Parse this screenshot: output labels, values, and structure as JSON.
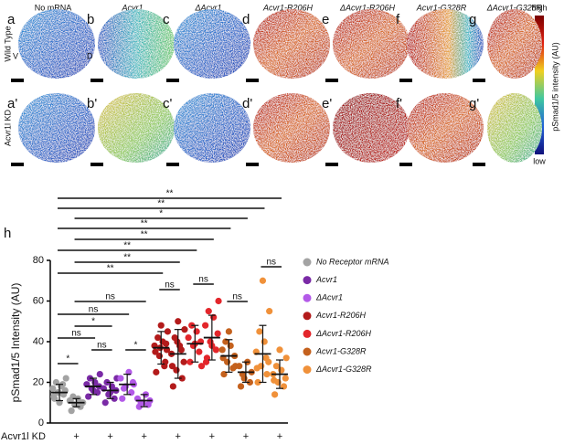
{
  "panels": {
    "columns": [
      "No mRNA",
      "Acvr1",
      "ΔAcvr1",
      "Acvr1-R206H",
      "ΔAcvr1-R206H",
      "Acvr1-G328R",
      "ΔAcvr1-G328R"
    ],
    "row_labels": [
      "Wild Type",
      "Acvr1l KD"
    ],
    "letters": [
      [
        "a",
        "b",
        "c",
        "d",
        "e",
        "f",
        "g"
      ],
      [
        "a'",
        "b'",
        "c'",
        "d'",
        "e'",
        "f'",
        "g'"
      ]
    ],
    "orientation": [
      "V",
      "D"
    ],
    "colorbar": {
      "high": "high",
      "low": "low",
      "title": "pSmad1/5 intensity (AU)"
    }
  },
  "chart_data": {
    "type": "strip",
    "panel_label": "h",
    "y_label": "pSmad1/5 Intensity (AU)",
    "x_label": "Acvr1l KD",
    "categories": [
      null,
      "+",
      null,
      "+",
      null,
      "+",
      null,
      "+",
      null,
      "+",
      null,
      "+",
      null,
      "+"
    ],
    "ylim": [
      0,
      80
    ],
    "yticks": [
      0,
      20,
      40,
      60,
      80
    ],
    "series": [
      {
        "name": "No Receptor mRNA",
        "color": "#a3a3a3",
        "values": [
          15,
          10
        ],
        "sd": [
          4,
          2
        ],
        "points": [
          [
            12,
            14,
            15,
            16,
            17,
            18,
            20,
            22,
            10,
            13,
            19,
            15
          ],
          [
            6,
            8,
            9,
            10,
            11,
            12,
            13,
            10,
            9,
            11
          ]
        ]
      },
      {
        "name": "Acvr1",
        "color": "#7a2aa6",
        "values": [
          18,
          16
        ],
        "sd": [
          4,
          4
        ],
        "points": [
          [
            13,
            15,
            17,
            18,
            19,
            20,
            22,
            24,
            16
          ],
          [
            10,
            12,
            14,
            16,
            17,
            18,
            20,
            22,
            15
          ]
        ]
      },
      {
        "name": "ΔAcvr1",
        "color": "#b35ae8",
        "values": [
          19,
          11
        ],
        "sd": [
          5,
          3
        ],
        "points": [
          [
            12,
            15,
            18,
            20,
            22,
            25,
            17,
            19
          ],
          [
            8,
            9,
            10,
            11,
            12,
            14,
            10
          ]
        ]
      },
      {
        "name": "Acvr1-R206H",
        "color": "#b31b1b",
        "values": [
          37,
          34
        ],
        "sd": [
          8,
          12
        ],
        "points": [
          [
            25,
            30,
            33,
            36,
            38,
            40,
            42,
            45,
            48,
            35,
            28,
            37,
            39
          ],
          [
            18,
            22,
            26,
            30,
            34,
            38,
            42,
            46,
            50,
            28,
            36,
            40
          ]
        ]
      },
      {
        "name": "ΔAcvr1-R206H",
        "color": "#e3262b",
        "values": [
          39,
          42
        ],
        "sd": [
          9,
          11
        ],
        "points": [
          [
            30,
            35,
            38,
            40,
            42,
            45,
            48,
            28,
            39
          ],
          [
            32,
            36,
            40,
            44,
            48,
            52,
            55,
            60,
            38,
            30
          ]
        ]
      },
      {
        "name": "Acvr1-G328R",
        "color": "#c4611d",
        "values": [
          33,
          25
        ],
        "sd": [
          8,
          5
        ],
        "points": [
          [
            24,
            27,
            30,
            33,
            36,
            38,
            40,
            28,
            45,
            32
          ],
          [
            18,
            20,
            22,
            25,
            28,
            30,
            24
          ]
        ]
      },
      {
        "name": "ΔAcvr1-G328R",
        "color": "#f0913a",
        "values": [
          34,
          24
        ],
        "sd": [
          14,
          7
        ],
        "points": [
          [
            20,
            24,
            28,
            30,
            35,
            40,
            45,
            55,
            70,
            27,
            32
          ],
          [
            14,
            18,
            20,
            22,
            24,
            26,
            28,
            32,
            36,
            21
          ]
        ]
      }
    ],
    "comparisons": [
      {
        "label": "**",
        "groups": [
          0,
          13
        ]
      },
      {
        "label": "**",
        "groups": [
          0,
          12
        ]
      },
      {
        "label": "*",
        "groups": [
          1,
          11
        ]
      },
      {
        "label": "**",
        "groups": [
          0,
          10
        ]
      },
      {
        "label": "**",
        "groups": [
          1,
          9
        ]
      },
      {
        "label": "**",
        "groups": [
          0,
          8
        ]
      },
      {
        "label": "**",
        "groups": [
          1,
          7
        ]
      },
      {
        "label": "**",
        "groups": [
          0,
          6
        ]
      },
      {
        "label": "ns",
        "groups": [
          12,
          13
        ]
      },
      {
        "label": "ns",
        "groups": [
          6,
          7
        ]
      },
      {
        "label": "ns",
        "groups": [
          8,
          9
        ]
      },
      {
        "label": "ns",
        "groups": [
          10,
          11
        ]
      },
      {
        "label": "ns",
        "groups": [
          1,
          5
        ]
      },
      {
        "label": "ns",
        "groups": [
          0,
          4
        ]
      },
      {
        "label": "*",
        "groups": [
          1,
          3
        ]
      },
      {
        "label": "ns",
        "groups": [
          0,
          2
        ]
      },
      {
        "label": "ns",
        "groups": [
          2,
          3
        ]
      },
      {
        "label": "*",
        "groups": [
          4,
          5
        ]
      },
      {
        "label": "*",
        "groups": [
          0,
          1
        ]
      }
    ]
  }
}
